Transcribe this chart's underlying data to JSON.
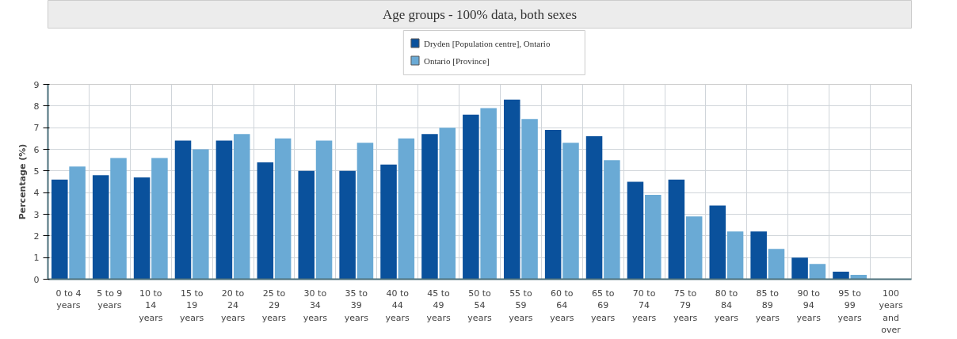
{
  "chart_data": {
    "type": "bar",
    "title": "Age groups - 100% data, both sexes",
    "ylabel": "Percentage (%)",
    "categories": [
      "0 to 4 years",
      "5 to 9 years",
      "10 to 14 years",
      "15 to 19 years",
      "20 to 24 years",
      "25 to 29 years",
      "30 to 34 years",
      "35 to 39 years",
      "40 to 44 years",
      "45 to 49 years",
      "50 to 54 years",
      "55 to 59 years",
      "60 to 64 years",
      "65 to 69 years",
      "70 to 74 years",
      "75 to 79 years",
      "80 to 84 years",
      "85 to 89 years",
      "90 to 94 years",
      "95 to 99 years",
      "100 years and over"
    ],
    "series": [
      {
        "name": "Dryden [Population centre], Ontario",
        "color": "#0a519c",
        "values": [
          4.6,
          4.8,
          4.7,
          6.4,
          6.4,
          5.4,
          5.0,
          5.0,
          5.3,
          6.7,
          7.6,
          8.3,
          6.9,
          6.6,
          4.5,
          4.6,
          3.4,
          2.2,
          1.0,
          0.35,
          0
        ]
      },
      {
        "name": "Ontario [Province]",
        "color": "#6aaad5",
        "values": [
          5.2,
          5.6,
          5.6,
          6.0,
          6.7,
          6.5,
          6.4,
          6.3,
          6.5,
          7.0,
          7.9,
          7.4,
          6.3,
          5.5,
          3.9,
          2.9,
          2.2,
          1.4,
          0.7,
          0.2,
          0
        ]
      }
    ],
    "ylim": [
      0,
      9
    ],
    "yticks": [
      0,
      1,
      2,
      3,
      4,
      5,
      6,
      7,
      8,
      9
    ],
    "grid": true,
    "legend": "top"
  }
}
